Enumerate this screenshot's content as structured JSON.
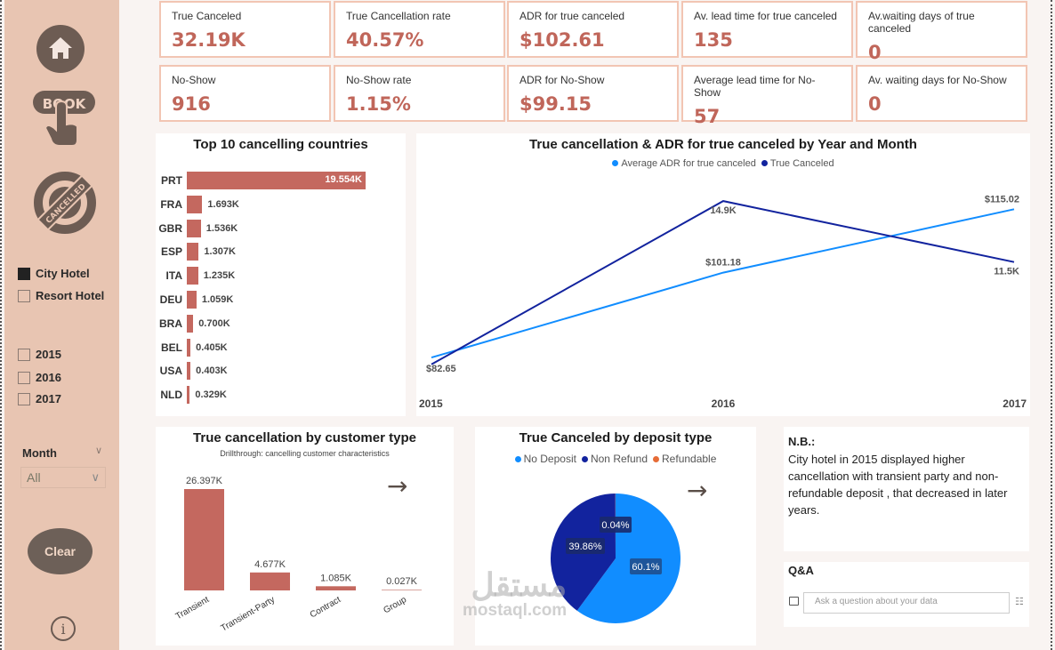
{
  "sidebar": {
    "nav": [
      {
        "name": "home-icon",
        "label": "Home"
      },
      {
        "name": "book-icon",
        "label": "BOOK"
      },
      {
        "name": "cancelled-icon",
        "label": "CANCELLED"
      }
    ],
    "hotel_slicer": [
      {
        "label": "City Hotel",
        "checked": true
      },
      {
        "label": "Resort Hotel",
        "checked": false
      }
    ],
    "year_slicer": [
      {
        "label": "2015",
        "checked": false
      },
      {
        "label": "2016",
        "checked": false
      },
      {
        "label": "2017",
        "checked": false
      }
    ],
    "month_slicer": {
      "label": "Month",
      "value": "All"
    },
    "clear_label": "Clear"
  },
  "kpis": [
    {
      "label": "True Canceled",
      "value": "32.19K"
    },
    {
      "label": "True Cancellation rate",
      "value": "40.57%"
    },
    {
      "label": "ADR for true canceled",
      "value": "$102.61"
    },
    {
      "label": "Av. lead time for true canceled",
      "value": "135"
    },
    {
      "label": "Av.waiting days of true canceled",
      "value": "0"
    },
    {
      "label": "No-Show",
      "value": "916"
    },
    {
      "label": "No-Show rate",
      "value": "1.15%"
    },
    {
      "label": "ADR for No-Show",
      "value": "$99.15"
    },
    {
      "label": "Average lead time for No-Show",
      "value": "57"
    },
    {
      "label": "Av. waiting days for No-Show",
      "value": "0"
    }
  ],
  "colors": {
    "bar": "#c4685f",
    "line_adr": "#118dff",
    "line_canceled": "#12239e",
    "pie_no_deposit": "#118dff",
    "pie_non_refund": "#12239e",
    "pie_refundable": "#e66c37",
    "kpi_value": "#c0665a",
    "sidebar": "#e8c5b2"
  },
  "chart_data": [
    {
      "type": "bar",
      "orientation": "horizontal",
      "title": "Top 10 cancelling countries",
      "categories": [
        "PRT",
        "FRA",
        "GBR",
        "ESP",
        "ITA",
        "DEU",
        "BRA",
        "BEL",
        "USA",
        "NLD"
      ],
      "values": [
        19.554,
        1.693,
        1.536,
        1.307,
        1.235,
        1.059,
        0.7,
        0.405,
        0.403,
        0.329
      ],
      "labels": [
        "19.554K",
        "1.693K",
        "1.536K",
        "1.307K",
        "1.235K",
        "1.059K",
        "0.700K",
        "0.405K",
        "0.403K",
        "0.329K"
      ],
      "unit": "K"
    },
    {
      "type": "line",
      "title": "True cancellation & ADR for true canceled by Year and Month",
      "x": [
        "2015",
        "2016",
        "2017"
      ],
      "series": [
        {
          "name": "Average ADR for true canceled",
          "values": [
            82.65,
            101.18,
            115.02
          ],
          "labels": [
            "$82.65",
            "$101.18",
            "$115.02"
          ]
        },
        {
          "name": "True Canceled",
          "values": [
            5800,
            14900,
            11500
          ],
          "labels": [
            "",
            "14.9K",
            "11.5K"
          ]
        }
      ],
      "legend": "top-center"
    },
    {
      "type": "bar",
      "title": "True cancellation by customer type",
      "subtitle": "Drillthrough: cancelling customer characteristics",
      "categories": [
        "Transient",
        "Transient-Party",
        "Contract",
        "Group"
      ],
      "values": [
        26.397,
        4.677,
        1.085,
        0.027
      ],
      "labels": [
        "26.397K",
        "4.677K",
        "1.085K",
        "0.027K"
      ],
      "unit": "K"
    },
    {
      "type": "pie",
      "title": "True Canceled by deposit type",
      "categories": [
        "No Deposit",
        "Non Refund",
        "Refundable"
      ],
      "values": [
        60.1,
        39.86,
        0.04
      ],
      "labels": [
        "60.1%",
        "39.86%",
        "0.04%"
      ],
      "legend": "top-center"
    }
  ],
  "note": {
    "title": "N.B.:",
    "text": "City hotel in 2015 displayed higher cancellation with transient party and non-refundable deposit , that decreased in later years."
  },
  "qa": {
    "title": "Q&A",
    "placeholder": "Ask a question about your data"
  },
  "watermark": {
    "arabic": "مستقل",
    "latin": "mostaql.com"
  }
}
